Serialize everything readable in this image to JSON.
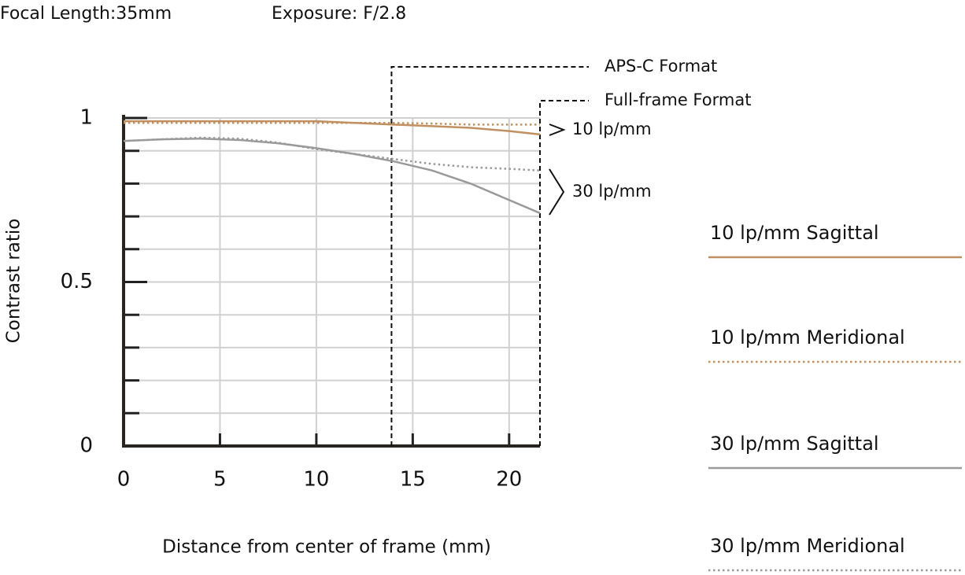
{
  "chart_data": {
    "type": "line",
    "header": [
      "Focal Length:35mm",
      "Exposure: F/2.8"
    ],
    "xlabel": "Distance from center of frame (mm)",
    "ylabel": "Contrast ratio",
    "x": [
      0,
      2,
      4,
      6,
      8,
      10,
      12,
      14,
      16,
      18,
      20,
      21.6
    ],
    "series": [
      {
        "name": "10 lp/mm Sagittal",
        "color": "#c09060",
        "dash": false,
        "values": [
          0.99,
          0.99,
          0.99,
          0.99,
          0.99,
          0.99,
          0.985,
          0.98,
          0.975,
          0.97,
          0.96,
          0.95
        ]
      },
      {
        "name": "10 lp/mm Meridional",
        "color": "#c09060",
        "dash": true,
        "values": [
          0.985,
          0.985,
          0.985,
          0.985,
          0.985,
          0.985,
          0.985,
          0.985,
          0.983,
          0.98,
          0.98,
          0.98
        ]
      },
      {
        "name": "30 lp/mm Sagittal",
        "color": "#9a9a9a",
        "dash": false,
        "values": [
          0.93,
          0.935,
          0.937,
          0.933,
          0.923,
          0.908,
          0.89,
          0.868,
          0.84,
          0.8,
          0.75,
          0.71
        ]
      },
      {
        "name": "30 lp/mm Meridional",
        "color": "#9a9a9a",
        "dash": true,
        "values": [
          0.93,
          0.935,
          0.94,
          0.937,
          0.925,
          0.905,
          0.89,
          0.875,
          0.86,
          0.85,
          0.845,
          0.84
        ]
      }
    ],
    "xlim": [
      0,
      21.6
    ],
    "ylim": [
      0,
      1
    ],
    "xticks": [
      0,
      5,
      10,
      15,
      20
    ],
    "yticks": [
      0,
      0.5,
      1
    ],
    "yminorticks": [
      0.1,
      0.2,
      0.3,
      0.4,
      0.6,
      0.7,
      0.8,
      0.9
    ],
    "grid": true,
    "format_boundaries": [
      {
        "label": "APS-C Format",
        "x": 13.9
      },
      {
        "label": "Full-frame Format",
        "x": 21.6
      }
    ],
    "group_labels": [
      "10 lp/mm",
      "30 lp/mm"
    ]
  }
}
